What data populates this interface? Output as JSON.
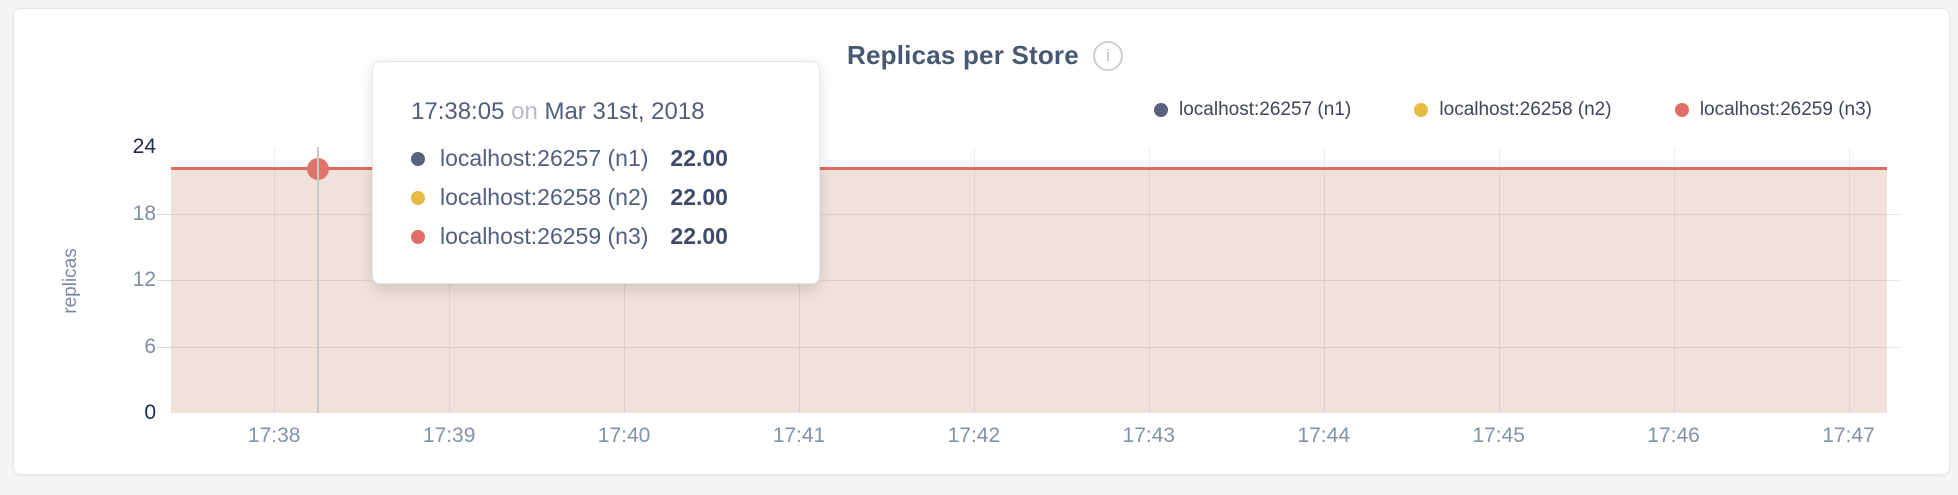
{
  "header": {
    "title": "Replicas per Store",
    "info_icon_glyph": "i"
  },
  "chart_data": {
    "type": "area",
    "title": "Replicas per Store",
    "xlabel": "",
    "ylabel": "replicas",
    "ylim": [
      0,
      24
    ],
    "grid": true,
    "legend_position": "top-right",
    "x_axis": {
      "min_minutes": 37.41,
      "max_minutes": 47.22,
      "unit": "time (HH:MM)"
    },
    "x_ticks": [
      {
        "label": "17:38",
        "minute": 38
      },
      {
        "label": "17:39",
        "minute": 39
      },
      {
        "label": "17:40",
        "minute": 40
      },
      {
        "label": "17:41",
        "minute": 41
      },
      {
        "label": "17:42",
        "minute": 42
      },
      {
        "label": "17:43",
        "minute": 43
      },
      {
        "label": "17:44",
        "minute": 44
      },
      {
        "label": "17:45",
        "minute": 45
      },
      {
        "label": "17:46",
        "minute": 46
      },
      {
        "label": "17:47",
        "minute": 47
      }
    ],
    "y_ticks": [
      {
        "label": "0",
        "value": 0,
        "major": true,
        "grid": false
      },
      {
        "label": "6",
        "value": 6,
        "major": false,
        "grid": true
      },
      {
        "label": "12",
        "value": 12,
        "major": false,
        "grid": true
      },
      {
        "label": "18",
        "value": 18,
        "major": false,
        "grid": true
      },
      {
        "label": "24",
        "value": 24,
        "major": true,
        "grid": false
      }
    ],
    "series": [
      {
        "name": "localhost:26257 (n1)",
        "color": "#56627e",
        "value": 22.0
      },
      {
        "name": "localhost:26258 (n2)",
        "color": "#e5bb42",
        "value": 22.0
      },
      {
        "name": "localhost:26259 (n3)",
        "color": "#e06e66",
        "value": 22.0
      }
    ],
    "constant_value": 22,
    "line_color": "#dd6a60",
    "fill_color": "#f0e1db",
    "hover": {
      "minute": 38.25,
      "value": 22,
      "dot_color": "#e0736b"
    }
  },
  "tooltip": {
    "time": "17:38:05",
    "on_word": "on",
    "date": "Mar 31st, 2018",
    "rows": [
      {
        "name": "localhost:26257 (n1)",
        "value": "22.00",
        "color": "#56627e"
      },
      {
        "name": "localhost:26258 (n2)",
        "value": "22.00",
        "color": "#e5bb42"
      },
      {
        "name": "localhost:26259 (n3)",
        "value": "22.00",
        "color": "#e06e66"
      }
    ]
  }
}
